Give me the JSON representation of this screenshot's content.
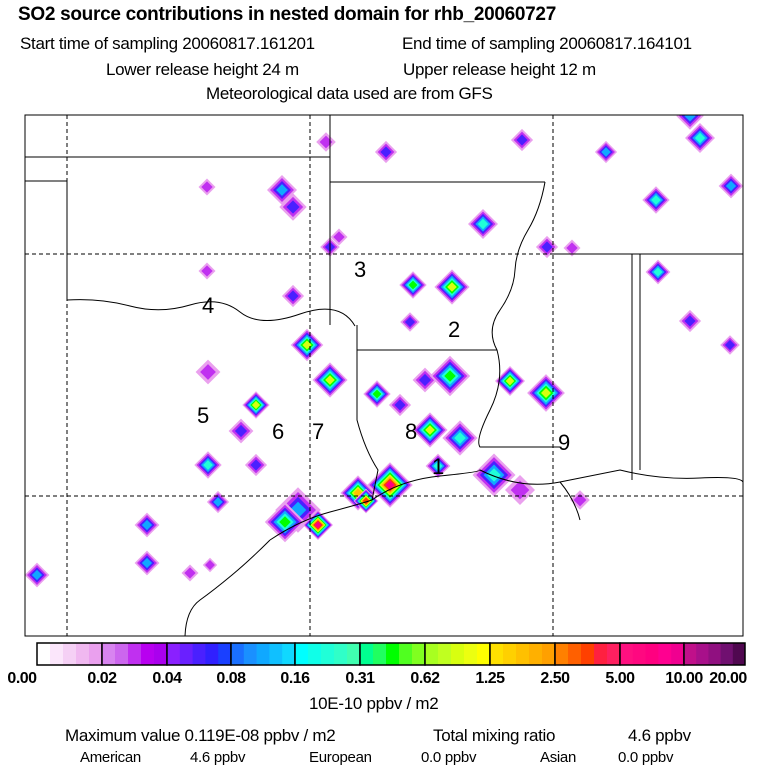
{
  "header": {
    "title": "SO2 source contributions in nested domain for rhb_20060727",
    "start_time": "Start time of sampling 20060817.161201",
    "end_time": "End time of sampling 20060817.164101",
    "lower_height": "Lower release height   24 m",
    "upper_height": "Upper release height   12 m",
    "met_data": "Meteorological data used are from GFS"
  },
  "map": {
    "source_labels": [
      "1",
      "2",
      "3",
      "4",
      "5",
      "6",
      "7",
      "8",
      "9"
    ]
  },
  "colorbar": {
    "ticks": [
      "0.00",
      "0.02",
      "0.04",
      "0.08",
      "0.16",
      "0.31",
      "0.62",
      "1.25",
      "2.50",
      "5.00",
      "10.00",
      "20.00"
    ],
    "unit": "10E-10 ppbv / m2",
    "palette": [
      [
        "#ffffff",
        "#fbe6fb",
        "#f5d0f5",
        "#f0b8f0",
        "#eaa0ee"
      ],
      [
        "#d884f0",
        "#cc66ee",
        "#c030f0",
        "#b800f0",
        "#aa00ee"
      ],
      [
        "#8a20ff",
        "#6a20ff",
        "#4a20ff",
        "#3020ff",
        "#1a40ff"
      ],
      [
        "#1a70ff",
        "#1a90ff",
        "#10a8ff",
        "#10c0ff",
        "#10d8ff"
      ],
      [
        "#00ffff",
        "#10ffe8",
        "#20ffd8",
        "#30ffc8",
        "#40ffb0"
      ],
      [
        "#00ff90",
        "#20ff60",
        "#00ff00",
        "#50ff20",
        "#80ff20"
      ],
      [
        "#a8ff20",
        "#c0ff20",
        "#d8ff10",
        "#ecff10",
        "#ffff00"
      ],
      [
        "#ffe000",
        "#ffd000",
        "#ffc000",
        "#ffb000",
        "#ffa000"
      ],
      [
        "#ff8000",
        "#ff6000",
        "#ff4000",
        "#ff2040",
        "#ff2060"
      ],
      [
        "#ff1080",
        "#ff0880",
        "#ff0080",
        "#ff0090",
        "#f00090"
      ],
      [
        "#c0108a",
        "#a8108a",
        "#901080",
        "#701070",
        "#500850"
      ]
    ]
  },
  "summary": {
    "max_label": "Maximum value  0.119E-08 ppbv / m2",
    "total_label": "Total mixing ratio",
    "total_value": "4.6 ppbv",
    "american_label": "American",
    "american_value": "4.6 ppbv",
    "european_label": "European",
    "european_value": "0.0 ppbv",
    "asian_label": "Asian",
    "asian_value": "0.0 ppbv"
  }
}
